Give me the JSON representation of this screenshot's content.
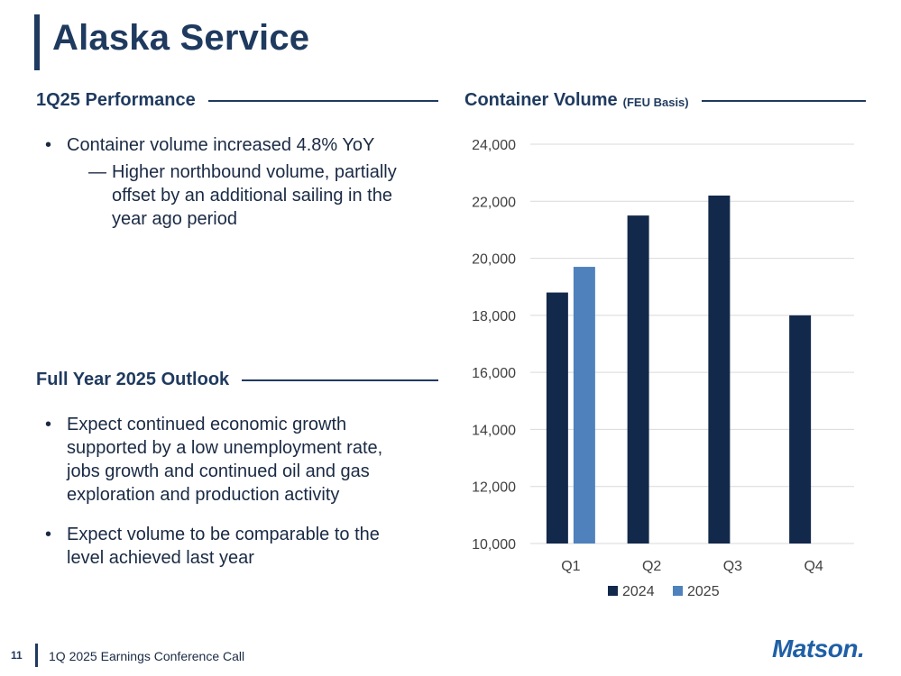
{
  "title": "Alaska Service",
  "left": {
    "performance_heading": "1Q25 Performance",
    "performance_bullet": "Container volume increased 4.8% YoY",
    "performance_sub": "Higher northbound volume, partially offset by an additional sailing in the year ago period",
    "outlook_heading": "Full Year 2025 Outlook",
    "outlook_bullets": [
      "Expect continued economic growth supported by a low unemployment rate, jobs growth and continued oil and gas exploration and production activity",
      "Expect volume to be comparable to the level achieved last year"
    ],
    "bullet_glyph": "•",
    "dash_glyph": "—"
  },
  "chart_heading": {
    "main": "Container Volume",
    "sub": "(FEU Basis)"
  },
  "chart_data": {
    "type": "bar",
    "categories": [
      "Q1",
      "Q2",
      "Q3",
      "Q4"
    ],
    "series": [
      {
        "name": "2024",
        "values": [
          18800,
          21500,
          22200,
          18000
        ],
        "color": "#13294b"
      },
      {
        "name": "2025",
        "values": [
          19700,
          null,
          null,
          null
        ],
        "color": "#4f81bd"
      }
    ],
    "ylim": [
      10000,
      24000
    ],
    "yticks": [
      "10,000",
      "12,000",
      "14,000",
      "16,000",
      "18,000",
      "20,000",
      "22,000",
      "24,000"
    ],
    "grid": true,
    "legend": "bottom"
  },
  "footer": {
    "page": "11",
    "text": "1Q 2025 Earnings Conference Call",
    "logo": "Matson."
  }
}
